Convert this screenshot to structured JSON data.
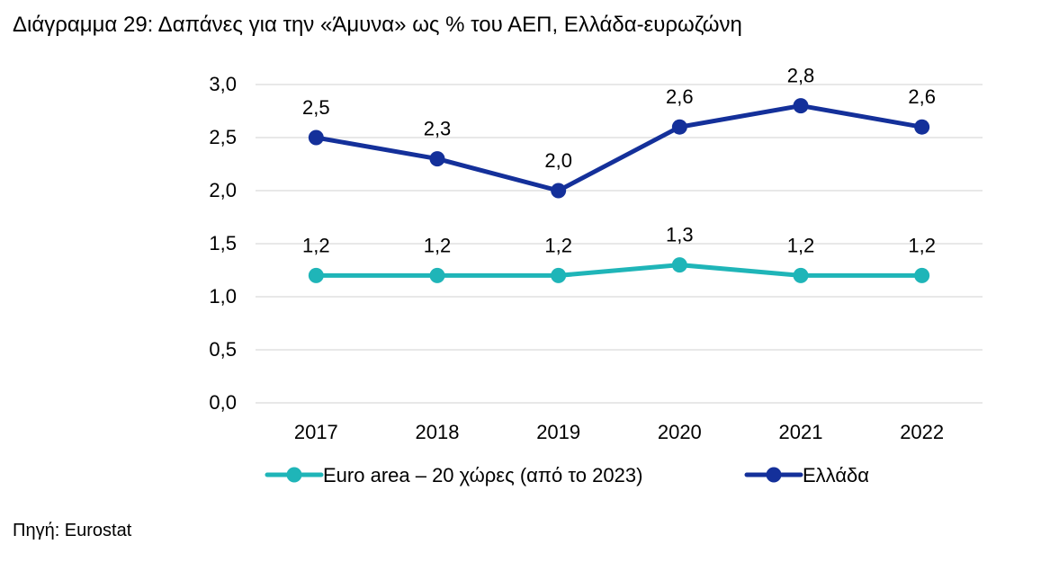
{
  "title": "Διάγραμμα 29: Δαπάνες για την «Άμυνα» ως % του ΑΕΠ, Ελλάδα-ευρωζώνη",
  "source": "Πηγή: Eurostat",
  "colors": {
    "euro_area": "#1fb5b8",
    "greece": "#14309a",
    "grid": "#d9d9d9"
  },
  "chart_data": {
    "type": "line",
    "x": [
      "2017",
      "2018",
      "2019",
      "2020",
      "2021",
      "2022"
    ],
    "ylim": [
      0,
      3
    ],
    "yticks": [
      "0,0",
      "0,5",
      "1,0",
      "1,5",
      "2,0",
      "2,5",
      "3,0"
    ],
    "grid": true,
    "legend_position": "bottom",
    "series": [
      {
        "name": "Euro area – 20 χώρες (από το 2023)",
        "values": [
          1.2,
          1.2,
          1.2,
          1.3,
          1.2,
          1.2
        ],
        "labels": [
          "1,2",
          "1,2",
          "1,2",
          "1,3",
          "1,2",
          "1,2"
        ],
        "color": "#1fb5b8"
      },
      {
        "name": "Ελλάδα",
        "values": [
          2.5,
          2.3,
          2.0,
          2.6,
          2.8,
          2.6
        ],
        "labels": [
          "2,5",
          "2,3",
          "2,0",
          "2,6",
          "2,8",
          "2,6"
        ],
        "color": "#14309a"
      }
    ]
  }
}
